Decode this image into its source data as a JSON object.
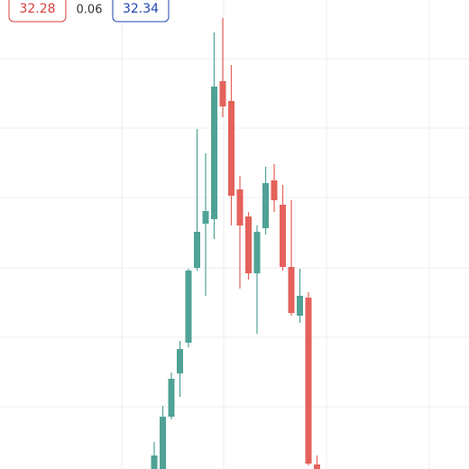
{
  "chart_data": {
    "type": "candlestick",
    "bid": 32.28,
    "spread": 0.06,
    "ask": 32.34,
    "up_color": "#4fa295",
    "down_color": "#e4625b",
    "ylim": [
      0,
      520
    ],
    "open": [
      0,
      0,
      58,
      106,
      140,
      223,
      272,
      277,
      430,
      408,
      310,
      280,
      217,
      267,
      320,
      293,
      224,
      170,
      190,
      5
    ],
    "high": [
      30,
      70,
      107,
      142,
      222,
      377,
      350,
      484,
      500,
      448,
      325,
      285,
      270,
      335,
      338,
      315,
      298,
      222,
      196,
      15
    ],
    "low": [
      0,
      0,
      55,
      80,
      135,
      220,
      192,
      255,
      390,
      270,
      200,
      210,
      150,
      260,
      285,
      220,
      170,
      162,
      4,
      0
    ],
    "close": [
      15,
      58,
      100,
      133,
      220,
      263,
      286,
      424,
      402,
      303,
      270,
      217,
      263,
      317,
      298,
      224,
      173,
      192,
      6,
      0
    ]
  }
}
